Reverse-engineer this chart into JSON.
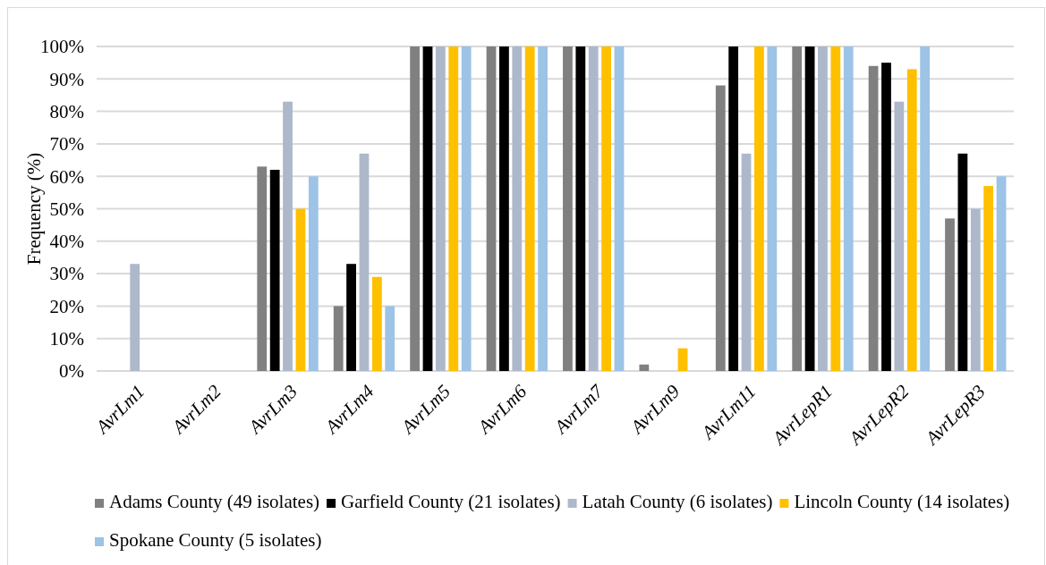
{
  "chart_data": {
    "type": "bar",
    "ylabel": "Frequency (%)",
    "categories": [
      "AvrLm1",
      "AvrLm2",
      "AvrLm3",
      "AvrLm4",
      "AvrLm5",
      "AvrLm6",
      "AvrLm7",
      "AvrLm9",
      "AvrLm11",
      "AvrLepR1",
      "AvrLepR2",
      "AvrLepR3"
    ],
    "series": [
      {
        "name": "Adams County (49 isolates)",
        "color": "#808080",
        "values": [
          0,
          0,
          63,
          20,
          100,
          100,
          100,
          2,
          88,
          100,
          94,
          47
        ]
      },
      {
        "name": "Garfield County (21 isolates)",
        "color": "#000000",
        "values": [
          0,
          0,
          62,
          33,
          100,
          100,
          100,
          0,
          100,
          100,
          95,
          67
        ]
      },
      {
        "name": "Latah County (6 isolates)",
        "color": "#adb9ca",
        "values": [
          33,
          0,
          83,
          67,
          100,
          100,
          100,
          0,
          67,
          100,
          83,
          50
        ]
      },
      {
        "name": "Lincoln County (14 isolates)",
        "color": "#ffc000",
        "values": [
          0,
          0,
          50,
          29,
          100,
          100,
          100,
          7,
          100,
          100,
          93,
          57
        ]
      },
      {
        "name": "Spokane County (5 isolates)",
        "color": "#9dc3e6",
        "values": [
          0,
          0,
          60,
          20,
          100,
          100,
          100,
          0,
          100,
          100,
          100,
          60
        ]
      }
    ],
    "ylim": [
      0,
      100
    ],
    "yticks": [
      {
        "value": 0,
        "label": "0%"
      },
      {
        "value": 10,
        "label": "10%"
      },
      {
        "value": 20,
        "label": "20%"
      },
      {
        "value": 30,
        "label": "30%"
      },
      {
        "value": 40,
        "label": "40%"
      },
      {
        "value": 50,
        "label": "50%"
      },
      {
        "value": 60,
        "label": "60%"
      },
      {
        "value": 70,
        "label": "70%"
      },
      {
        "value": 80,
        "label": "80%"
      },
      {
        "value": 90,
        "label": "90%"
      },
      {
        "value": 100,
        "label": "100%"
      }
    ],
    "grid": "y",
    "legend": "bottom"
  }
}
